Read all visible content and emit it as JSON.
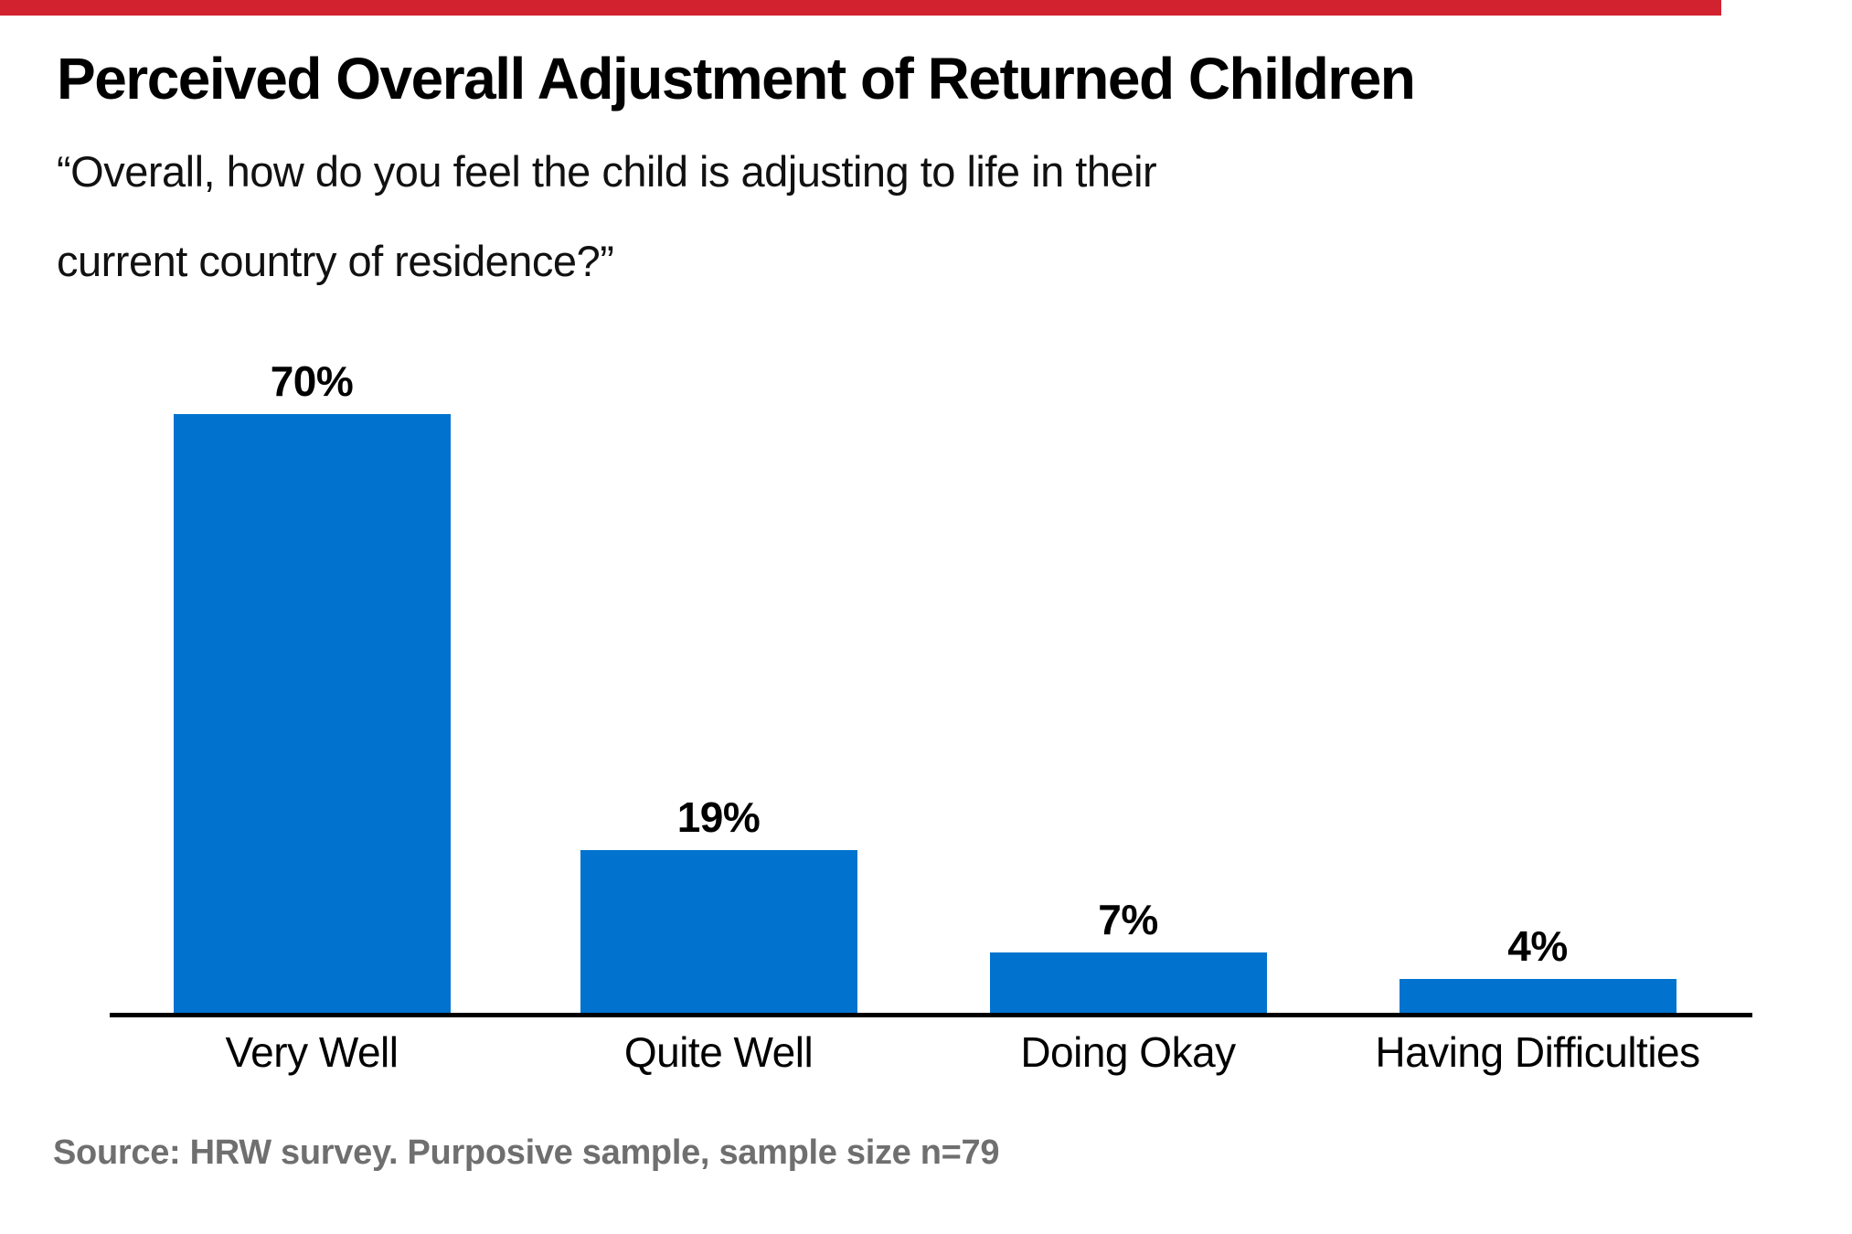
{
  "accent_bar": {
    "color": "#d22230"
  },
  "header": {
    "title": "Perceived Overall Adjustment of Returned Children",
    "subtitle_line1": "“Overall, how do you feel the child is adjusting to life in their",
    "subtitle_line2": "current country of residence?”"
  },
  "chart_data": {
    "type": "bar",
    "title": "Perceived Overall Adjustment of Returned Children",
    "subtitle": "“Overall, how do you feel the child is adjusting to life in their current country of residence?”",
    "categories": [
      "Very Well",
      "Quite Well",
      "Doing Okay",
      "Having Difficulties"
    ],
    "values": [
      70,
      19,
      7,
      4
    ],
    "value_labels": [
      "70%",
      "19%",
      "7%",
      "4%"
    ],
    "bar_color": "#0173cf",
    "axis_color": "#000000",
    "text_color": "#000000",
    "ylim": [
      0,
      70
    ],
    "grid": false,
    "legend": false,
    "orientation": "vertical"
  },
  "footer": {
    "source": "Source: HRW survey. Purposive sample, sample size n=79"
  }
}
